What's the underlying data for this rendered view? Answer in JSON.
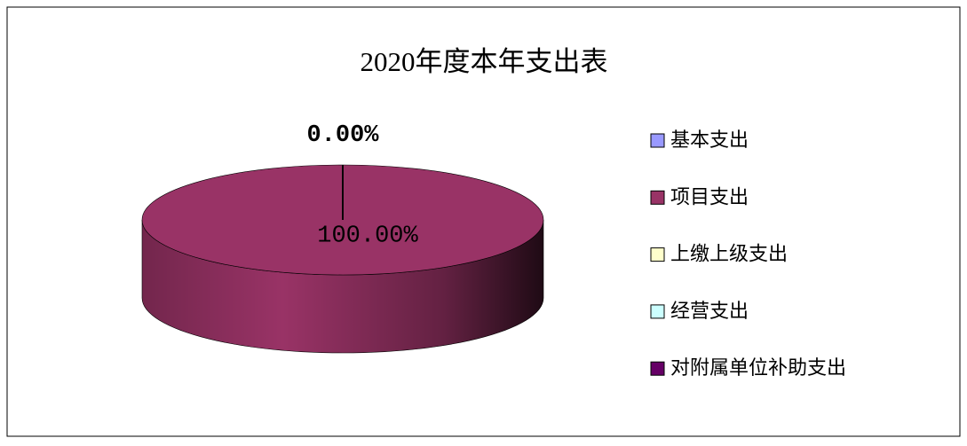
{
  "chart_data": {
    "type": "pie",
    "title": "2020年度本年支出表",
    "categories": [
      "基本支出",
      "项目支出",
      "上缴上级支出",
      "经营支出",
      "对附属单位补助支出"
    ],
    "values": [
      0,
      100,
      0,
      0,
      0
    ],
    "value_labels": [
      "0.00%",
      "100.00%",
      null,
      null,
      null
    ],
    "colors": [
      "#9999ff",
      "#993366",
      "#ffffcc",
      "#ccffff",
      "#660066"
    ],
    "legend": "right"
  }
}
